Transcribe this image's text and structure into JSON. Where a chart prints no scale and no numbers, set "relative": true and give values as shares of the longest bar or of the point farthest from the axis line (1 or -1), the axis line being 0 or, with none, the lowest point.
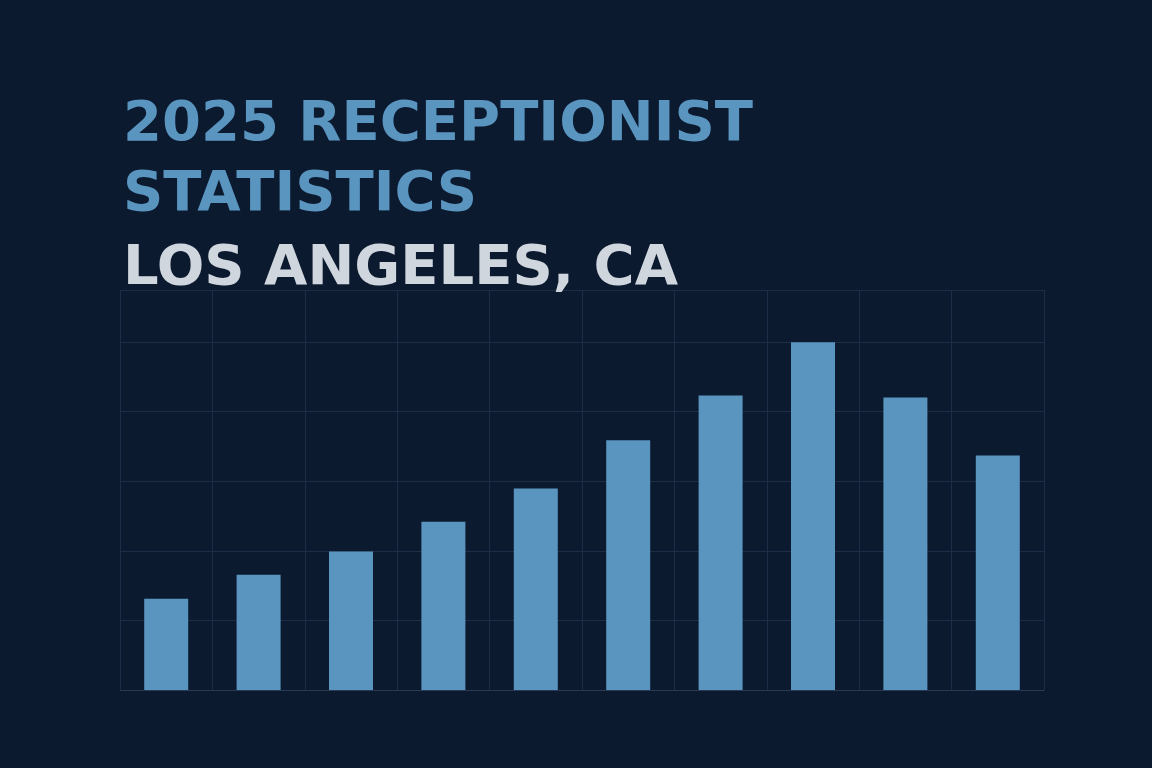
{
  "chart_data": {
    "type": "bar",
    "title": "2025 RECEPTIONIST STATISTICS",
    "subtitle": "LOS ANGELES, CA",
    "categories": [
      null,
      null,
      null,
      null,
      null,
      null,
      null,
      null,
      null,
      null
    ],
    "values": [
      0.262,
      0.331,
      0.398,
      0.484,
      0.579,
      0.718,
      0.847,
      1,
      0.841,
      0.674
    ],
    "color": "#5a95c0",
    "relative": true,
    "grid": true
  }
}
